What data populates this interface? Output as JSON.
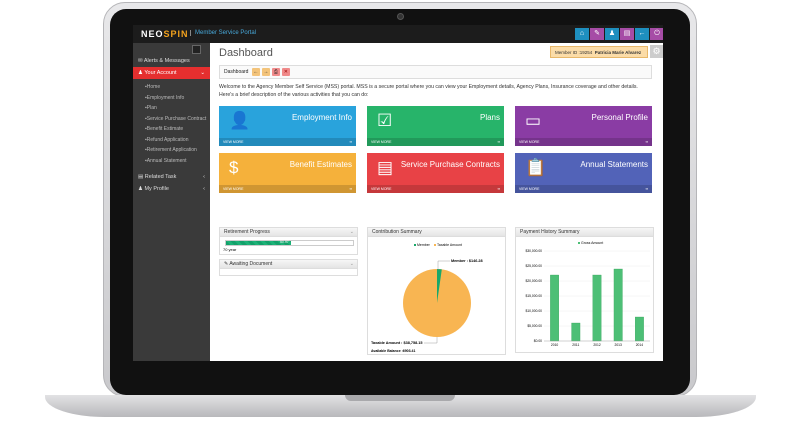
{
  "topbar": {
    "brand_a": "NEO",
    "brand_b": "SPIN",
    "portal": "Member Service Portal",
    "buttons": [
      {
        "icon": "home-icon",
        "glyph": "⌂",
        "color": "#1e8fbf"
      },
      {
        "icon": "edit-icon",
        "glyph": "✎",
        "color": "#a64ca6"
      },
      {
        "icon": "user-icon",
        "glyph": "♟",
        "color": "#1e8fbf"
      },
      {
        "icon": "clipboard-icon",
        "glyph": "▤",
        "color": "#a64ca6"
      },
      {
        "icon": "back-icon",
        "glyph": "←",
        "color": "#1e8fbf"
      },
      {
        "icon": "logout-icon",
        "glyph": "⏻",
        "color": "#a64ca6"
      }
    ]
  },
  "sidebar": {
    "items": [
      {
        "label": "Alerts & Messages",
        "icon": "mail-icon",
        "glyph": "✉"
      },
      {
        "label": "Your Account",
        "icon": "user-icon",
        "glyph": "♟"
      },
      {
        "label": "Related Task",
        "icon": "list-icon",
        "glyph": "▤"
      },
      {
        "label": "My Profile",
        "icon": "users-icon",
        "glyph": "♟"
      }
    ],
    "subitems": [
      "Home",
      "Employment Info",
      "Plan",
      "Service Purchase Contract",
      "Benefit Estimate",
      "Refund Application",
      "Retirement Application",
      "Annual Statement"
    ]
  },
  "header": {
    "title": "Dashboard",
    "member_id": "Member ID :19254",
    "member_name": "Patricia Marie Alvarez"
  },
  "breadcrumb": {
    "label": "Dashboard"
  },
  "welcome": "Welcome to the Agency Member Self Service (MSS) portal. MSS is a secure portal where you can view your Employment details, Agency Plans, Insurance coverage and other details. Here's a brief description of the various activities that you can do:",
  "tiles": [
    {
      "title": "Employment Info",
      "color": "#29a3dc",
      "icon": "employee-icon",
      "glyph": "👤"
    },
    {
      "title": "Plans",
      "color": "#27b46a",
      "icon": "checkbox-icon",
      "glyph": "☑"
    },
    {
      "title": "Personal Profile",
      "color": "#8a3ca4",
      "icon": "id-card-icon",
      "glyph": "▭"
    },
    {
      "title": "Benefit Estimates",
      "color": "#f5b13b",
      "icon": "money-icon",
      "glyph": "$"
    },
    {
      "title": "Service Purchase Contracts",
      "color": "#e84246",
      "icon": "document-icon",
      "glyph": "▤"
    },
    {
      "title": "Annual Statements",
      "color": "#5263b8",
      "icon": "clipboard-icon",
      "glyph": "📋"
    }
  ],
  "view_more": "VIEW MORE",
  "retirement": {
    "title": "Retirement Progress",
    "percent": 50.97,
    "percent_label": "50.97",
    "caption": "70 year"
  },
  "awaiting": {
    "title": "Awaiting Document"
  },
  "contribution": {
    "title": "Contribution Summary",
    "legend": [
      "Member",
      "Taxable Amount"
    ],
    "member_label": "Member : $146.28",
    "taxable_label": "Taxable Amount : $38,758.15",
    "balance": "Available Balance :6903.41",
    "member_value": 146.28,
    "taxable_value": 38758.15,
    "colors": [
      "#1aa86a",
      "#f8b552"
    ]
  },
  "chart_data": {
    "type": "bar",
    "title": "Payment History Summary",
    "legend": [
      "Gross Amount"
    ],
    "categories": [
      "2010",
      "2011",
      "2012",
      "2013",
      "2014"
    ],
    "values": [
      22000,
      6000,
      22000,
      24000,
      8000
    ],
    "yticks": [
      "$0.00",
      "$5,000.00",
      "$10,000.00",
      "$15,000.00",
      "$20,000.00",
      "$25,000.00",
      "$30,000.00"
    ],
    "ylim": [
      0,
      30000
    ],
    "color": "#4dbf76",
    "grid": true
  }
}
